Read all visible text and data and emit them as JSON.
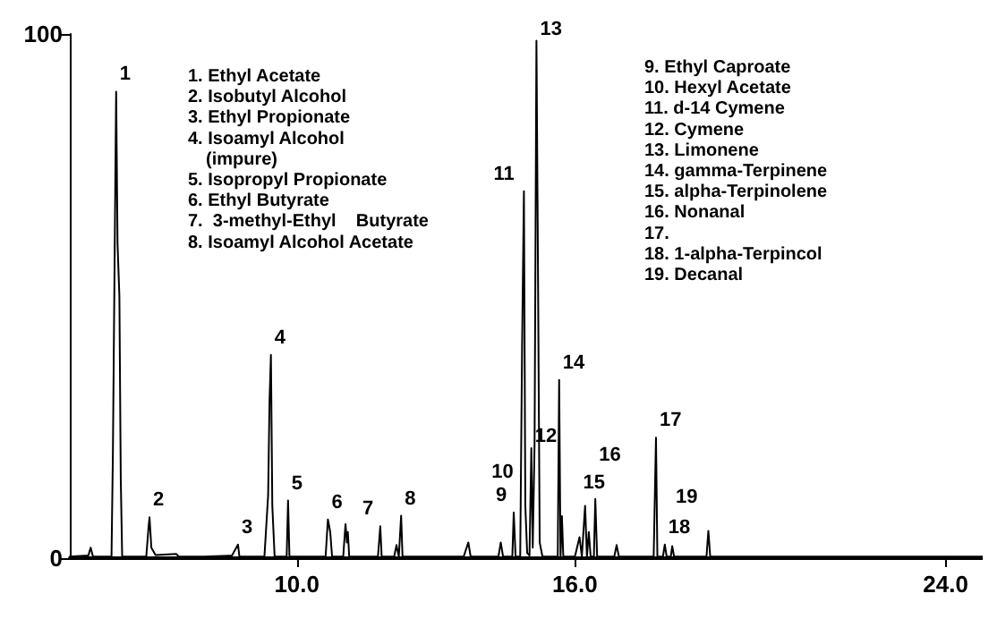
{
  "chart_data": {
    "type": "line",
    "xlim": [
      5.1,
      24.8
    ],
    "ylim": [
      0,
      100
    ],
    "xticks": [
      {
        "value": 10,
        "label": "10.0"
      },
      {
        "value": 16,
        "label": "16.0"
      },
      {
        "value": 24,
        "label": "24.0"
      }
    ],
    "yticks": [
      0,
      100
    ],
    "grid": false,
    "marker": "none",
    "line_style": "solid",
    "series": [
      {
        "color": "#000000",
        "x": [
          5.1,
          5.5,
          5.55,
          5.6,
          6.0,
          6.03,
          6.07,
          6.1,
          6.13,
          6.17,
          6.2,
          6.23,
          6.75,
          6.8,
          6.82,
          6.86,
          6.95,
          7.4,
          7.45,
          8.0,
          8.6,
          8.73,
          8.76,
          9.3,
          9.38,
          9.41,
          9.44,
          9.47,
          9.52,
          9.78,
          9.81,
          9.84,
          10.62,
          10.67,
          10.72,
          10.76,
          11.0,
          11.05,
          11.08,
          11.1,
          11.13,
          11.75,
          11.8,
          11.83,
          12.1,
          12.15,
          12.2,
          12.25,
          12.28,
          13.6,
          13.7,
          13.75,
          14.35,
          14.4,
          14.45,
          14.65,
          14.68,
          14.72,
          14.82,
          14.86,
          14.9,
          14.93,
          14.97,
          15.02,
          15.06,
          15.09,
          15.13,
          15.17,
          15.2,
          15.24,
          15.3,
          15.63,
          15.66,
          15.69,
          15.72,
          15.75,
          16.0,
          16.1,
          16.15,
          16.22,
          16.26,
          16.3,
          16.34,
          16.41,
          16.44,
          16.48,
          16.85,
          16.9,
          16.95,
          17.7,
          17.75,
          17.78,
          17.9,
          17.94,
          17.98,
          18.07,
          18.1,
          18.14,
          18.84,
          18.88,
          18.92,
          24.8
        ],
        "values": [
          0.3,
          0.5,
          2,
          0.3,
          0.3,
          20,
          60,
          89,
          60,
          50,
          15,
          0.3,
          0.3,
          6,
          7.8,
          2,
          0.6,
          0.8,
          0.3,
          0.3,
          0.5,
          2.6,
          0.3,
          0.3,
          12,
          30,
          38.8,
          10,
          0.3,
          0.3,
          11,
          0.3,
          0.3,
          7.4,
          5,
          0.3,
          0.3,
          6.5,
          3,
          5,
          0.3,
          0.3,
          6.1,
          0.3,
          0.3,
          2.5,
          0.3,
          8.1,
          0.3,
          0.3,
          3,
          0.3,
          0.3,
          3,
          0.3,
          0.3,
          8.7,
          0.3,
          0.3,
          40,
          70,
          10,
          1,
          0.5,
          21,
          2,
          22,
          98.7,
          60,
          3,
          0.3,
          0.3,
          34,
          0.3,
          8,
          0.3,
          0.3,
          4,
          0.3,
          10,
          0.3,
          5,
          0.3,
          0.3,
          11.3,
          0.3,
          0.3,
          2.5,
          0.3,
          0.3,
          23,
          0.3,
          0.3,
          2.6,
          0.3,
          0.3,
          2.3,
          0.3,
          0.3,
          5.2,
          0.3,
          0.3
        ]
      }
    ],
    "annotations": [
      {
        "text": "1",
        "x": 6.1,
        "y": 89
      },
      {
        "text": "2",
        "x": 6.82,
        "y": 7.8
      },
      {
        "text": "3",
        "x": 8.73,
        "y": 2.6
      },
      {
        "text": "4",
        "x": 9.44,
        "y": 38.8
      },
      {
        "text": "5",
        "x": 9.81,
        "y": 11
      },
      {
        "text": "6",
        "x": 10.67,
        "y": 7.4
      },
      {
        "text": "7",
        "x": 11.8,
        "y": 6.1
      },
      {
        "text": "8",
        "x": 12.25,
        "y": 8.1
      },
      {
        "text": "9",
        "x": 14.68,
        "y": 8.7
      },
      {
        "text": "10",
        "x": 14.86,
        "y": 5
      },
      {
        "text": "11",
        "x": 14.9,
        "y": 70
      },
      {
        "text": "12",
        "x": 15.06,
        "y": 21
      },
      {
        "text": "13",
        "x": 15.17,
        "y": 98.7
      },
      {
        "text": "14",
        "x": 15.66,
        "y": 34
      },
      {
        "text": "15",
        "x": 16.1,
        "y": 4
      },
      {
        "text": "16",
        "x": 16.44,
        "y": 11.3
      },
      {
        "text": "17",
        "x": 17.75,
        "y": 23
      },
      {
        "text": "18",
        "x": 17.94,
        "y": 2.6
      },
      {
        "text": "19",
        "x": 18.1,
        "y": 2.3
      },
      "1. Ethyl Acetate",
      "2. Isobutyl Alcohol",
      "3. Ethyl Propionate",
      "4. Isoamyl Alcohol",
      "(impure)",
      "5. Isopropyl Propionate",
      "6. Ethyl Butyrate",
      "7.  3-methyl-Ethyl    Butyrate",
      "8. Isoamyl Alcohol Acetate",
      "9. Ethyl Caproate",
      "10. Hexyl Acetate",
      "11. d-14 Cymene",
      "12. Cymene",
      "13. Limonene",
      "14. gamma-Terpinene",
      "15. alpha-Terpinolene",
      "16. Nonanal",
      "17.",
      "18. 1-alpha-Terpincol",
      "19. Decanal"
    ]
  }
}
